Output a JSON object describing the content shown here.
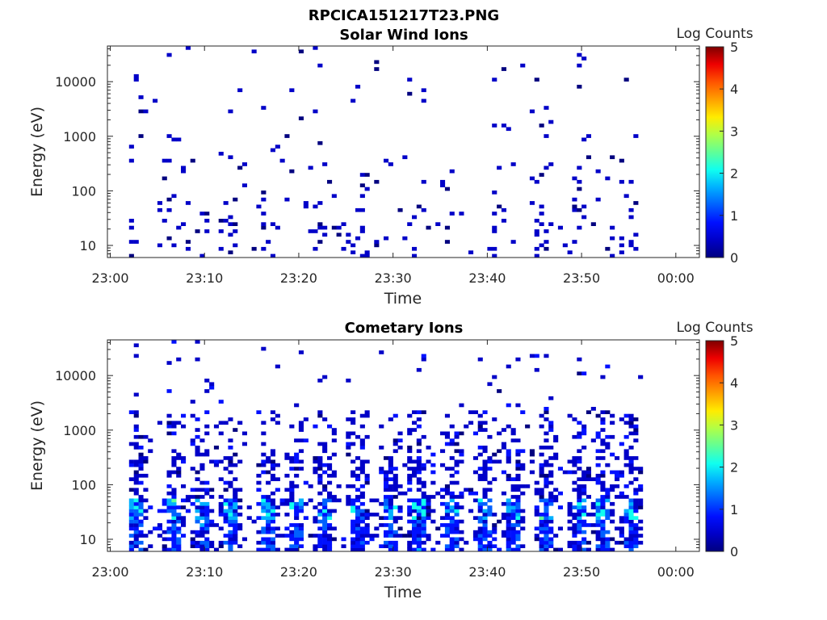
{
  "figure_title": "RPCICA151217T23.PNG",
  "colors": {
    "colormap": [
      "#00007f",
      "#0000c8",
      "#0010ff",
      "#0060ff",
      "#00b0ff",
      "#10ffef",
      "#60ff97",
      "#b0ff47",
      "#ffec00",
      "#ffa000",
      "#ff5400",
      "#ee0000",
      "#7f0000"
    ],
    "background": "#ffffff",
    "axes": "#262626"
  },
  "chart_data": [
    {
      "type": "heatmap",
      "title": "Solar Wind Ions",
      "xlabel": "Time",
      "ylabel": "Energy (eV)",
      "x_tick_labels": [
        "23:00",
        "23:10",
        "23:20",
        "23:30",
        "23:40",
        "23:50",
        "00:00"
      ],
      "y_tick_labels": [
        "10",
        "100",
        "1000",
        "10000"
      ],
      "yscale": "log",
      "ylim_eV": [
        6,
        45000
      ],
      "xlim_minutes": [
        -0.3,
        62.5
      ],
      "colorbar": {
        "label": "Log Counts",
        "range": [
          0,
          5
        ],
        "tick_labels": [
          "0",
          "1",
          "2",
          "3",
          "4",
          "5"
        ]
      },
      "activity_profile": "sparse",
      "max_level": 0.6,
      "activity_bursts_minutes": [
        2.5,
        6.5,
        12.5,
        16.5,
        21.5,
        26.5,
        32.0,
        36.0,
        41.0,
        45.5,
        49.5,
        54.5
      ]
    },
    {
      "type": "heatmap",
      "title": "Cometary Ions",
      "xlabel": "Time",
      "ylabel": "Energy (eV)",
      "x_tick_labels": [
        "23:00",
        "23:10",
        "23:20",
        "23:30",
        "23:40",
        "23:50",
        "00:00"
      ],
      "y_tick_labels": [
        "10",
        "100",
        "1000",
        "10000"
      ],
      "yscale": "log",
      "ylim_eV": [
        6,
        45000
      ],
      "xlim_minutes": [
        -0.3,
        62.5
      ],
      "colorbar": {
        "label": "Log Counts",
        "range": [
          0,
          5
        ],
        "tick_labels": [
          "0",
          "1",
          "2",
          "3",
          "4",
          "5"
        ]
      },
      "activity_profile": "dense",
      "max_level": 2.1,
      "activity_bursts_minutes": [
        2.5,
        6.5,
        9.5,
        12.5,
        16.5,
        19.5,
        22.5,
        26.0,
        29.5,
        32.5,
        36.0,
        39.5,
        42.5,
        46.0,
        49.5,
        52.0,
        55.0
      ]
    }
  ]
}
